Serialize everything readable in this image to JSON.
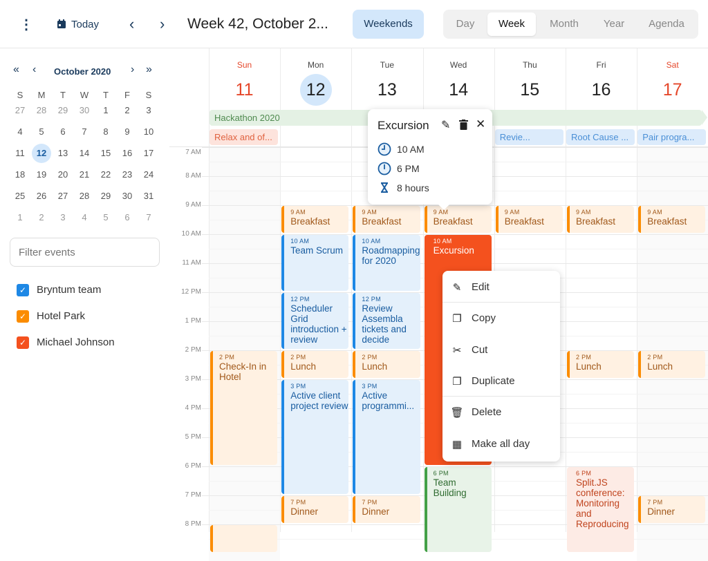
{
  "toolbar": {
    "menu_icon": "more-vertical-icon",
    "today": "Today",
    "title": "Week 42, October 2...",
    "weekends": "Weekends",
    "modes": [
      {
        "label": "Day",
        "active": false
      },
      {
        "label": "Week",
        "active": true
      },
      {
        "label": "Month",
        "active": false
      },
      {
        "label": "Year",
        "active": false
      },
      {
        "label": "Agenda",
        "active": false
      }
    ]
  },
  "mini_calendar": {
    "title": "October 2020",
    "weekdays": [
      "S",
      "M",
      "T",
      "W",
      "T",
      "F",
      "S"
    ],
    "weeks": [
      [
        "27",
        "28",
        "29",
        "30",
        "1",
        "2",
        "3"
      ],
      [
        "4",
        "5",
        "6",
        "7",
        "8",
        "9",
        "10"
      ],
      [
        "11",
        "12",
        "13",
        "14",
        "15",
        "16",
        "17"
      ],
      [
        "18",
        "19",
        "20",
        "21",
        "22",
        "23",
        "24"
      ],
      [
        "25",
        "26",
        "27",
        "28",
        "29",
        "30",
        "31"
      ],
      [
        "1",
        "2",
        "3",
        "4",
        "5",
        "6",
        "7"
      ]
    ],
    "selected": "12"
  },
  "filter": {
    "placeholder": "Filter events"
  },
  "resources": [
    {
      "name": "Bryntum team",
      "color": "#1e88e5",
      "checked": true
    },
    {
      "name": "Hotel Park",
      "color": "#fb8c00",
      "checked": true
    },
    {
      "name": "Michael Johnson",
      "color": "#f4511e",
      "checked": true
    }
  ],
  "days": [
    {
      "name": "Sun",
      "num": "11",
      "weekend": true
    },
    {
      "name": "Mon",
      "num": "12",
      "today": true
    },
    {
      "name": "Tue",
      "num": "13"
    },
    {
      "name": "Wed",
      "num": "14"
    },
    {
      "name": "Thu",
      "num": "15"
    },
    {
      "name": "Fri",
      "num": "16"
    },
    {
      "name": "Sat",
      "num": "17",
      "weekend": true
    }
  ],
  "hours": [
    "7 AM",
    "8 AM",
    "9 AM",
    "10 AM",
    "11 AM",
    "12 PM",
    "1 PM",
    "2 PM",
    "3 PM",
    "4 PM",
    "5 PM",
    "6 PM",
    "7 PM",
    "8 PM"
  ],
  "all_day": [
    {
      "name": "Hackathon 2020",
      "start_day": 0,
      "end_day": 6,
      "row": 0,
      "color": "green"
    },
    {
      "name": "Relax and of...",
      "start_day": 0,
      "end_day": 0,
      "row": 1,
      "color": "red"
    },
    {
      "name": "Revie...",
      "start_day": 4,
      "end_day": 4,
      "row": 1,
      "color": "blue"
    },
    {
      "name": "Root Cause ...",
      "start_day": 5,
      "end_day": 5,
      "row": 1,
      "color": "blue"
    },
    {
      "name": "Pair progra...",
      "start_day": 6,
      "end_day": 6,
      "row": 1,
      "color": "blue"
    }
  ],
  "events": [
    {
      "day": 0,
      "start": 14,
      "end": 18,
      "time": "2 PM",
      "name": "Check-In in Hotel",
      "color": "orange"
    },
    {
      "day": 0,
      "start": 20,
      "end": 21,
      "time": "",
      "name": "",
      "color": "orange"
    },
    {
      "day": 1,
      "start": 9,
      "end": 10,
      "time": "9 AM",
      "name": "Breakfast",
      "color": "orange"
    },
    {
      "day": 1,
      "start": 10,
      "end": 12,
      "time": "10 AM",
      "name": "Team Scrum",
      "color": "blue"
    },
    {
      "day": 1,
      "start": 12,
      "end": 14,
      "time": "12 PM",
      "name": "Scheduler Grid introduction + review",
      "color": "blue"
    },
    {
      "day": 1,
      "start": 14,
      "end": 15,
      "time": "2 PM",
      "name": "Lunch",
      "color": "orange"
    },
    {
      "day": 1,
      "start": 15,
      "end": 19,
      "time": "3 PM",
      "name": "Active client project review",
      "color": "blue"
    },
    {
      "day": 1,
      "start": 19,
      "end": 20,
      "time": "7 PM",
      "name": "Dinner",
      "color": "orange"
    },
    {
      "day": 2,
      "start": 9,
      "end": 10,
      "time": "9 AM",
      "name": "Breakfast",
      "color": "orange"
    },
    {
      "day": 2,
      "start": 10,
      "end": 12,
      "time": "10 AM",
      "name": "Roadmapping for 2020",
      "color": "blue"
    },
    {
      "day": 2,
      "start": 12,
      "end": 14,
      "time": "12 PM",
      "name": "Review Assembla tickets and decide",
      "color": "blue"
    },
    {
      "day": 2,
      "start": 14,
      "end": 15,
      "time": "2 PM",
      "name": "Lunch",
      "color": "orange"
    },
    {
      "day": 2,
      "start": 15,
      "end": 19,
      "time": "3 PM",
      "name": "Active programmi...",
      "color": "blue"
    },
    {
      "day": 2,
      "start": 19,
      "end": 20,
      "time": "7 PM",
      "name": "Dinner",
      "color": "orange"
    },
    {
      "day": 3,
      "start": 9,
      "end": 10,
      "time": "9 AM",
      "name": "Breakfast",
      "color": "orange"
    },
    {
      "day": 3,
      "start": 10,
      "end": 18,
      "time": "10 AM",
      "name": "Excursion",
      "color": "solid"
    },
    {
      "day": 3,
      "start": 18,
      "end": 21,
      "time": "6 PM",
      "name": "Team Building",
      "color": "green"
    },
    {
      "day": 4,
      "start": 9,
      "end": 10,
      "time": "9 AM",
      "name": "Breakfast",
      "color": "orange"
    },
    {
      "day": 5,
      "start": 9,
      "end": 10,
      "time": "9 AM",
      "name": "Breakfast",
      "color": "orange"
    },
    {
      "day": 5,
      "start": 14,
      "end": 15,
      "time": "2 PM",
      "name": "Lunch",
      "color": "orange"
    },
    {
      "day": 5,
      "start": 18,
      "end": 21,
      "time": "6 PM",
      "name": "Split.JS conference: Monitoring and Reproducing",
      "color": "red"
    },
    {
      "day": 6,
      "start": 9,
      "end": 10,
      "time": "9 AM",
      "name": "Breakfast",
      "color": "orange"
    },
    {
      "day": 6,
      "start": 14,
      "end": 15,
      "time": "2 PM",
      "name": "Lunch",
      "color": "orange"
    },
    {
      "day": 6,
      "start": 19,
      "end": 20,
      "time": "7 PM",
      "name": "Dinner",
      "color": "orange"
    }
  ],
  "popup": {
    "title": "Excursion",
    "start": "10 AM",
    "end": "6 PM",
    "duration": "8 hours"
  },
  "context_menu": [
    {
      "label": "Edit",
      "icon": "pencil-icon"
    },
    {
      "label": "Copy",
      "icon": "copy-icon"
    },
    {
      "label": "Cut",
      "icon": "scissors-icon"
    },
    {
      "label": "Duplicate",
      "icon": "duplicate-icon"
    },
    {
      "label": "Delete",
      "icon": "trash-icon"
    },
    {
      "label": "Make all day",
      "icon": "calendar-icon"
    }
  ],
  "colors": {
    "accent": "#1e88e5",
    "weekend": "#e5472a",
    "excursion": "#f4511e"
  }
}
